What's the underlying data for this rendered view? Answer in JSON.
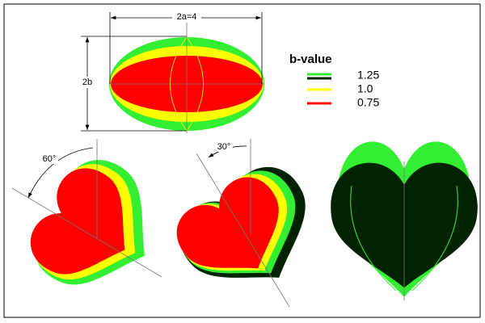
{
  "dimensions": {
    "width_label": "2a=4",
    "height_label": "2b"
  },
  "legend": {
    "title": "b-value",
    "items": [
      {
        "label": "1.25"
      },
      {
        "label": "1.0"
      },
      {
        "label": "0.75"
      }
    ]
  },
  "angles": [
    "60°",
    "30°"
  ]
}
